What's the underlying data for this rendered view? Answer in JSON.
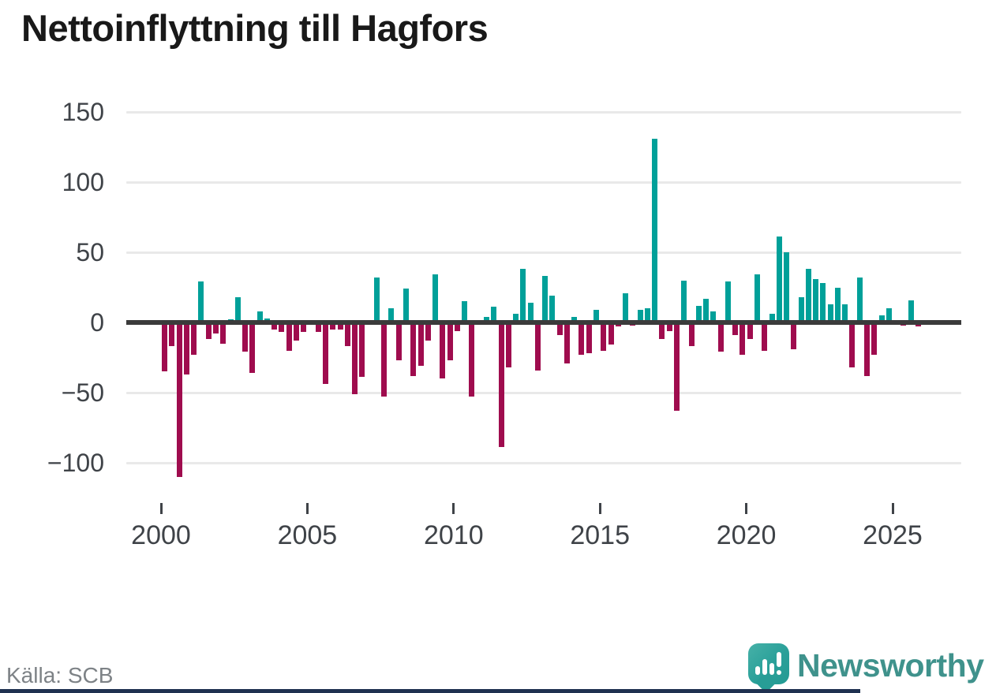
{
  "title": "Nettoinflyttning till Hagfors",
  "source": "Källa: SCB",
  "branding": {
    "name": "Newsworthy",
    "icon": "newsworthy-pin-barchart-icon"
  },
  "colors": {
    "positive": "#00a099",
    "negative": "#9f0c4e",
    "axis": "#3b3b3b",
    "grid": "#e9e9e9",
    "tick_text": "#3f4348",
    "source_text": "#7d8286",
    "wordmark": "#3f928c",
    "logo": "#2aa099",
    "bottom_strip": "#1f3150"
  },
  "chart_data": {
    "type": "bar",
    "title": "Nettoinflyttning till Hagfors",
    "x_axis": {
      "tick_years": [
        "2000",
        "2005",
        "2010",
        "2015",
        "2020",
        "2025"
      ],
      "start": "2000 Q1",
      "end": "2025 Q4",
      "frequency": "quarterly"
    },
    "y_axis": {
      "tick_labels": [
        "150",
        "100",
        "50",
        "0",
        "−50",
        "−100"
      ],
      "tick_values": [
        150,
        100,
        50,
        0,
        -50,
        -100
      ],
      "ylim": [
        -115,
        155
      ]
    },
    "grid": "horizontal",
    "legend": "none",
    "series": [
      {
        "name": "Nettoinflyttning per kvartal",
        "unit": "personer",
        "values": [
          -35,
          -17,
          -110,
          -37,
          -23,
          29,
          -12,
          -8,
          -15,
          2,
          18,
          -21,
          -36,
          8,
          3,
          -5,
          -7,
          -20,
          -13,
          -7,
          0,
          -7,
          -44,
          -5,
          -5,
          -17,
          -51,
          -39,
          0,
          32,
          -53,
          10,
          -27,
          24,
          -38,
          -31,
          -13,
          34,
          -40,
          -27,
          -6,
          15,
          -53,
          0,
          4,
          11,
          -89,
          -32,
          6,
          38,
          14,
          -34,
          33,
          19,
          -9,
          -29,
          4,
          -23,
          -22,
          9,
          -20,
          -16,
          -3,
          21,
          -2,
          9,
          10,
          131,
          -12,
          -6,
          -63,
          30,
          -17,
          12,
          17,
          8,
          -21,
          29,
          -9,
          -23,
          -12,
          34,
          -20,
          6,
          61,
          50,
          -19,
          18,
          38,
          31,
          28,
          13,
          25,
          13,
          -32,
          32,
          -38,
          -23,
          5,
          10,
          0,
          -2,
          16,
          -3
        ]
      }
    ]
  }
}
